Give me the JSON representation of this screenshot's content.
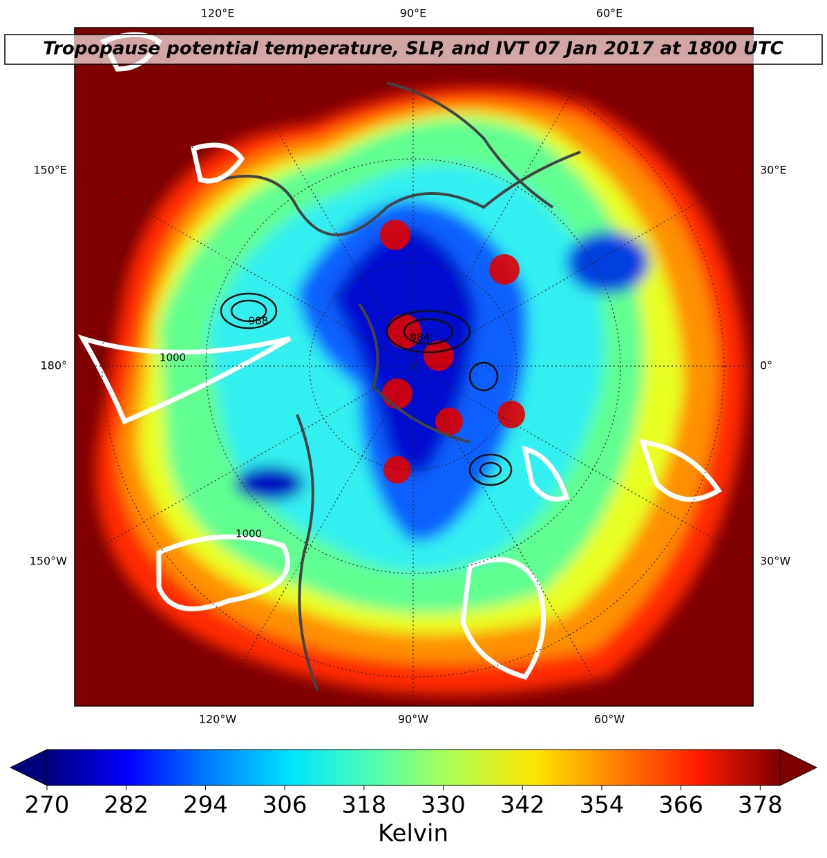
{
  "header": {
    "title": "Tropopause potential temperature, SLP, and IVT 07 Jan 2017 at 1800 UTC"
  },
  "map": {
    "top_labels": [
      "120°E",
      "90°E",
      "60°E"
    ],
    "bottom_labels": [
      "120°W",
      "90°W",
      "60°W"
    ],
    "left_labels": [
      "150°E",
      "180°",
      "150°W"
    ],
    "right_labels": [
      "30°E",
      "0°",
      "30°W"
    ],
    "contour_labels": [
      "1000",
      "984",
      "988",
      "1000"
    ]
  },
  "colorbar": {
    "label": "Kelvin",
    "lim": [
      270,
      381
    ],
    "ticks": [
      270,
      282,
      294,
      306,
      318,
      330,
      342,
      354,
      366,
      378
    ],
    "colors": [
      "#00007f",
      "#0000ff",
      "#007fff",
      "#00e5ff",
      "#4dffb2",
      "#b2ff4d",
      "#ffe500",
      "#ff7f00",
      "#ff1a00",
      "#7f0000"
    ]
  }
}
